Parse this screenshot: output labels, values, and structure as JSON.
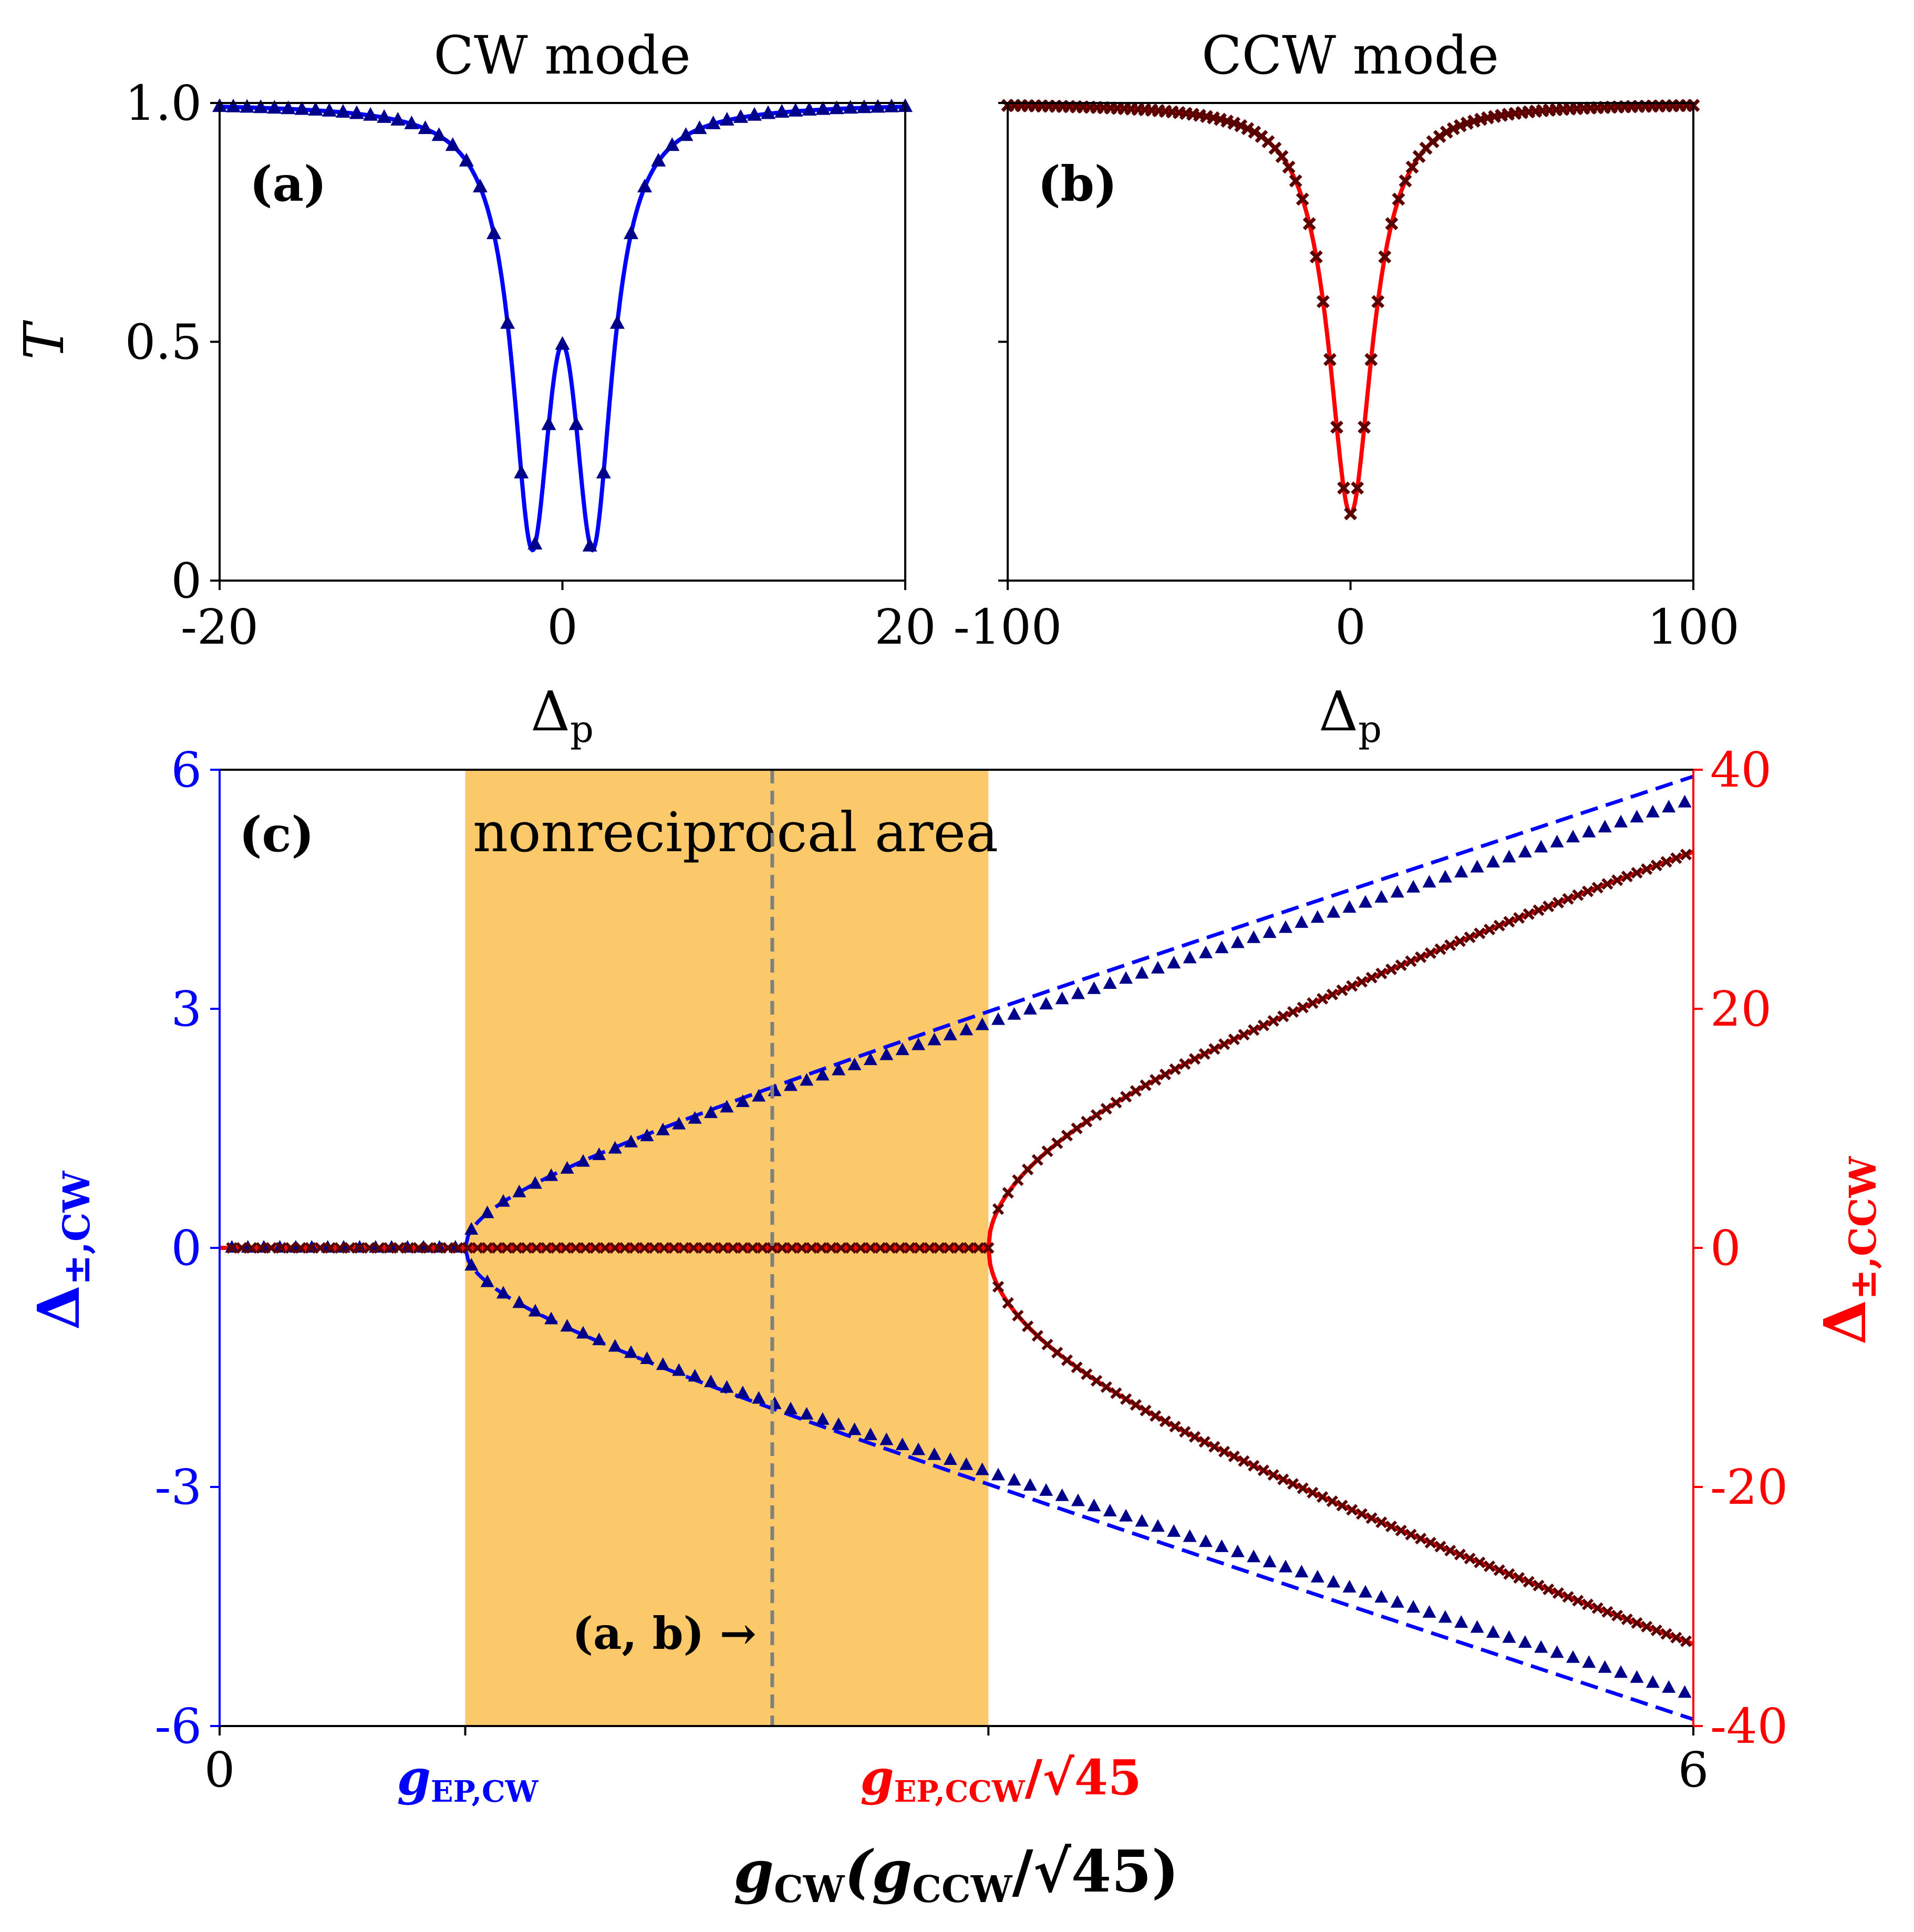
{
  "colors": {
    "cw_line": "#0000ff",
    "cw_marker": "#00008b",
    "ccw_line": "#ff0000",
    "ccw_marker": "#5a0000",
    "shade": "#fbc86a",
    "vline": "#808080",
    "axis": "#000000"
  },
  "chart_data": [
    {
      "id": "a",
      "type": "line",
      "panel_label": "(a)",
      "title": "CW mode",
      "xlabel": "Δ",
      "xlabel_sub": "p",
      "ylabel": "T",
      "xlim": [
        -20,
        20
      ],
      "ylim": [
        0,
        1
      ],
      "xticks": [
        -20,
        0,
        20
      ],
      "xtick_labels": [
        "-20",
        "0",
        "20"
      ],
      "yticks": [
        0,
        0.5,
        1.0
      ],
      "ytick_labels": [
        "0",
        "0.5",
        "1.0"
      ],
      "series": [
        {
          "name": "CW transmission (line)",
          "style": "solid",
          "model": {
            "kind": "double_dip",
            "kappa": 3.0,
            "g": 1.8,
            "t_min": 0.02
          }
        },
        {
          "name": "CW transmission (triangles)",
          "style": "triangle",
          "marker_step": 0.8
        }
      ]
    },
    {
      "id": "b",
      "type": "line",
      "panel_label": "(b)",
      "title": "CCW mode",
      "xlabel": "Δ",
      "xlabel_sub": "p",
      "xlim": [
        -100,
        100
      ],
      "ylim": [
        0,
        1
      ],
      "xticks": [
        -100,
        0,
        100
      ],
      "xtick_labels": [
        "-100",
        "0",
        "100"
      ],
      "yticks": [
        0,
        0.5,
        1.0
      ],
      "series": [
        {
          "name": "CCW transmission (line)",
          "style": "solid",
          "model": {
            "kind": "single_dip",
            "kappa": 12.0,
            "t_min": 0.14
          }
        },
        {
          "name": "CCW transmission (crosses)",
          "style": "cross",
          "marker_step": 2.0
        }
      ]
    },
    {
      "id": "c",
      "type": "line",
      "panel_label": "(c)",
      "xlabel_main": "g",
      "xlabel_main_sub": "CW",
      "xlabel_paren": "(g",
      "xlabel_paren_sub": "CCW",
      "xlabel_tail": "/√45)",
      "ylabel_left": "Δ",
      "ylabel_left_sub": "±,CW",
      "ylabel_right": "Δ",
      "ylabel_right_sub": "±,CCW",
      "xlim": [
        0,
        6
      ],
      "ylim_left": [
        -6,
        6
      ],
      "ylim_right": [
        -40,
        40
      ],
      "xticks": [
        0,
        1,
        3.13,
        6
      ],
      "xtick_labels": [
        "0",
        "",
        "",
        "6"
      ],
      "special_xtick_cw": "g",
      "special_xtick_cw_sub": "EP,CW",
      "special_xtick_ccw": "g",
      "special_xtick_ccw_sub": "EP,CCW",
      "special_xtick_ccw_tail": "/√45",
      "yticks_left": [
        -6,
        -3,
        0,
        3,
        6
      ],
      "ytick_labels_left": [
        "-6",
        "-3",
        "0",
        "3",
        "6"
      ],
      "yticks_right": [
        -40,
        -20,
        0,
        20,
        40
      ],
      "ytick_labels_right": [
        "-40",
        "-20",
        "0",
        "20",
        "40"
      ],
      "shaded_region": {
        "x0": 1.0,
        "x1": 3.13,
        "label": "nonreciprocal area"
      },
      "vline": {
        "x": 2.25,
        "label": "(a, b) →"
      },
      "g_ep_cw": 1.0,
      "g_ep_ccw_scaled": 3.13,
      "series": [
        {
          "name": "CW eigenvalues (dashed)",
          "axis": "left",
          "style": "dashed",
          "model": "sqrt(x^2 - 1)"
        },
        {
          "name": "CW transmission minima (triangles)",
          "axis": "left",
          "style": "triangle",
          "points_upper_at": {
            "1.2": 0.65,
            "2.25": 1.85,
            "3.13": 2.7,
            "6": 5.6
          }
        },
        {
          "name": "CCW eigenvalues (line)",
          "axis": "right",
          "style": "solid",
          "model": "sqrt(45) * sqrt(x^2 - 3.13^2)"
        },
        {
          "name": "CCW transmission minima (crosses)",
          "axis": "right",
          "style": "cross"
        }
      ]
    }
  ]
}
